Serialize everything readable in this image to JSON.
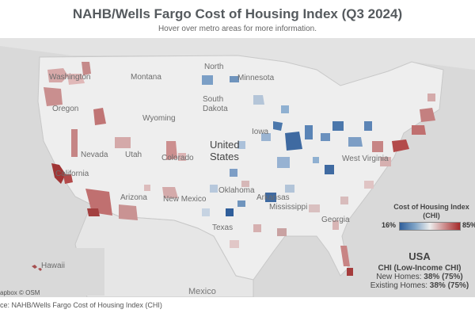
{
  "header": {
    "title": "NAHB/Wells Fargo Cost of Housing Index (Q3 2024)",
    "subtitle": "Hover over metro areas for more information."
  },
  "map_labels": {
    "country": "United States",
    "country_line1": "United",
    "country_line2": "States",
    "mexico": "Mexico",
    "hawaii": "Hawaii",
    "states": [
      "Montana",
      "North Dakota",
      "Minnesota",
      "South Dakota",
      "Wyoming",
      "Oregon",
      "Nevada",
      "Utah",
      "Colorado",
      "California",
      "Arizona",
      "New Mexico",
      "Oklahoma",
      "Texas",
      "Arkansas",
      "Mississippi",
      "Georgia",
      "Iowa",
      "Washington",
      "West Virginia"
    ]
  },
  "legend": {
    "title_line1": "Cost of Housing Index",
    "title_line2": "(CHI)",
    "min_label": "16%",
    "max_label": "85%",
    "colors": {
      "low": "#2f5e9a",
      "mid": "#ededed",
      "high": "#a52a2a"
    }
  },
  "summary": {
    "region": "USA",
    "subtitle": "CHI (Low-Income CHI)",
    "new_homes_label": "New Homes:",
    "new_homes_value": "38% (75%)",
    "existing_homes_label": "Existing Homes:",
    "existing_homes_value": "38% (75%)"
  },
  "attribution": "apbox © OSM",
  "source": "ce: NAHB/Wells Fargo Cost of Housing Index (CHI)"
}
